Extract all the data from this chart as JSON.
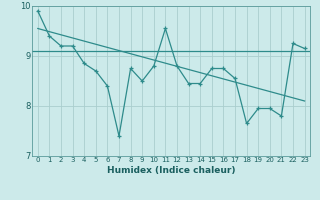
{
  "x": [
    0,
    1,
    2,
    3,
    4,
    5,
    6,
    7,
    8,
    9,
    10,
    11,
    12,
    13,
    14,
    15,
    16,
    17,
    18,
    19,
    20,
    21,
    22,
    23
  ],
  "y": [
    9.9,
    9.4,
    9.2,
    9.2,
    8.85,
    8.7,
    8.4,
    7.4,
    8.75,
    8.5,
    8.8,
    9.55,
    8.8,
    8.45,
    8.45,
    8.75,
    8.75,
    8.55,
    7.65,
    7.95,
    7.95,
    7.8,
    9.25,
    9.15
  ],
  "trend_x": [
    0,
    23
  ],
  "trend_y": [
    9.55,
    8.1
  ],
  "hline_y": 9.1,
  "xlim": [
    -0.5,
    23.5
  ],
  "ylim": [
    7.0,
    10.0
  ],
  "yticks": [
    7,
    8,
    9,
    10
  ],
  "xticks": [
    0,
    1,
    2,
    3,
    4,
    5,
    6,
    7,
    8,
    9,
    10,
    11,
    12,
    13,
    14,
    15,
    16,
    17,
    18,
    19,
    20,
    21,
    22,
    23
  ],
  "xlabel": "Humidex (Indice chaleur)",
  "line_color": "#2e8b8b",
  "bg_color": "#cceaea",
  "grid_color": "#aacece",
  "hline_color": "#2e8b8b",
  "trend_color": "#2e8b8b"
}
